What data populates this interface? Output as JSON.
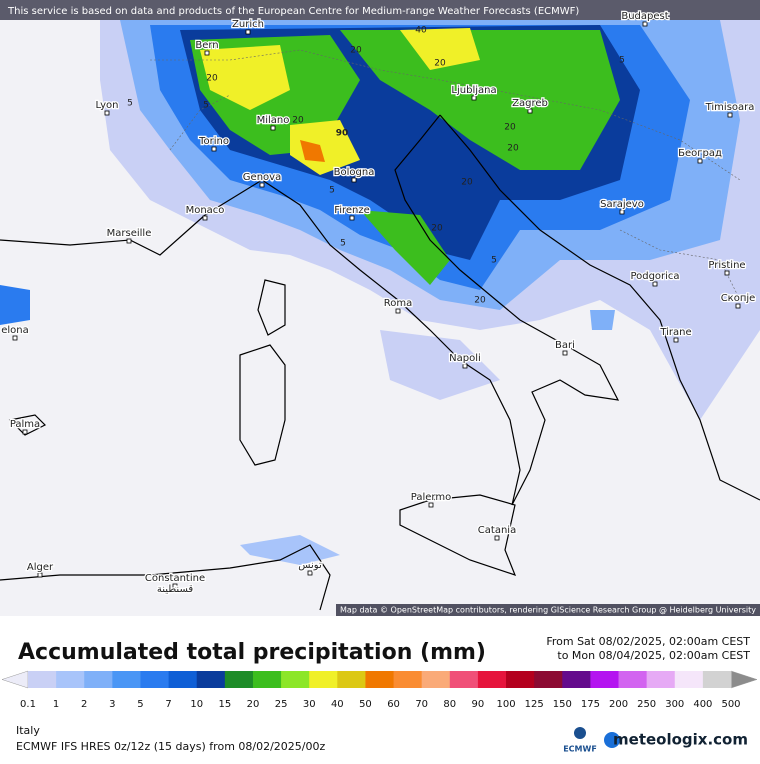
{
  "banner": "This service is based on data and products of the European Centre for Medium-range Weather Forecasts (ECMWF)",
  "map": {
    "cities": [
      "Zurich",
      "Budapest",
      "Bern",
      "Lyon",
      "Ljubljana",
      "Zagreb",
      "Timisoara",
      "Milano",
      "Torino",
      "Београд",
      "Bologna",
      "Genova",
      "Sarajevo",
      "Monaco",
      "Firenze",
      "Marseille",
      "Podgorica",
      "Pristine",
      "Скопје",
      "Roma",
      "Tirane",
      "elona",
      "Napoli",
      "Bari",
      "Palma",
      "Palermo",
      "Catania",
      "Alger",
      "Constantine",
      "قسنطينة",
      "تونس"
    ],
    "contour_labels": [
      5,
      20,
      5,
      20,
      90,
      20,
      40,
      20,
      5,
      5,
      20,
      5,
      20,
      20,
      20,
      5,
      20
    ],
    "attribution": "Map data © OpenStreetMap contributors, rendering GIScience Research Group @ Heidelberg University"
  },
  "legend": {
    "title": "Accumulated total precipitation (mm)",
    "from": "From Sat 08/02/2025, 02:00am CEST",
    "to": "to Mon 08/04/2025, 02:00am CEST",
    "low_color": "#ececf8",
    "high_color": "#8c8c8c",
    "colors": [
      "#c9d0f5",
      "#a8c4fa",
      "#7fb0f8",
      "#4a96f5",
      "#2a7bef",
      "#0f5fd6",
      "#0a3c9c",
      "#1e8c28",
      "#3cbe1e",
      "#8ce628",
      "#f0f028",
      "#dcc814",
      "#f07800",
      "#fa8c32",
      "#faaa78",
      "#f05078",
      "#e6143c",
      "#b4001e",
      "#8c0a32",
      "#640a8c",
      "#b414f0",
      "#d264f0",
      "#e6aaf5",
      "#f5e6fa",
      "#d2d2d2"
    ],
    "ticks": [
      0.1,
      1,
      2,
      3,
      5,
      7,
      10,
      15,
      20,
      25,
      30,
      40,
      50,
      60,
      70,
      80,
      90,
      100,
      125,
      150,
      175,
      200,
      250,
      300,
      400,
      500
    ]
  },
  "footer": {
    "region": "Italy",
    "model": "ECMWF IFS HRES 0z/12z (15 days) from  08/02/2025/00z",
    "ecmwf": "ECMWF",
    "brand": "meteologix.com"
  }
}
